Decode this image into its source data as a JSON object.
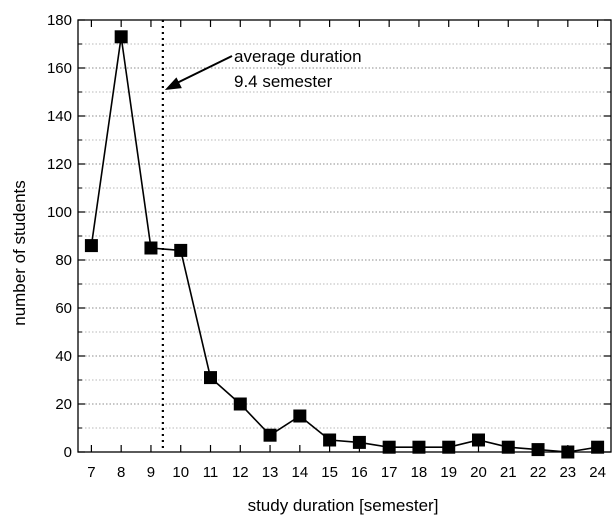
{
  "chart_data": {
    "type": "line",
    "title": "",
    "xlabel": "study duration [semester]",
    "ylabel": "number of students",
    "xlim": [
      6.55,
      24.45
    ],
    "ylim": [
      0,
      180
    ],
    "x_ticks": [
      7,
      8,
      9,
      10,
      11,
      12,
      13,
      14,
      15,
      16,
      17,
      18,
      19,
      20,
      21,
      22,
      23,
      24
    ],
    "y_ticks": [
      0,
      20,
      40,
      60,
      80,
      100,
      120,
      140,
      160,
      180
    ],
    "x_tick_labels": [
      "7",
      "8",
      "9",
      "10",
      "11",
      "12",
      "13",
      "14",
      "15",
      "16",
      "17",
      "18",
      "19",
      "20",
      "21",
      "22",
      "23",
      "24"
    ],
    "y_tick_labels": [
      "0",
      "20",
      "40",
      "60",
      "80",
      "100",
      "120",
      "140",
      "160",
      "180"
    ],
    "grid": "horizontal dotted",
    "marker": "square",
    "series": [
      {
        "x": [
          7,
          8,
          9,
          10,
          11,
          12,
          13,
          14,
          15,
          16,
          17,
          18,
          19,
          20,
          21,
          22,
          23,
          24
        ],
        "values": [
          86,
          173,
          85,
          84,
          31,
          20,
          7,
          15,
          5,
          4,
          2,
          2,
          2,
          5,
          2,
          1,
          0,
          2
        ],
        "color": "#000000"
      }
    ],
    "reference_line": {
      "x": 9.4,
      "style": "dotted"
    },
    "annotation": {
      "line1": "average duration",
      "line2": "9.4 semester",
      "points_to": {
        "x": 9.4,
        "y": 150
      }
    }
  }
}
